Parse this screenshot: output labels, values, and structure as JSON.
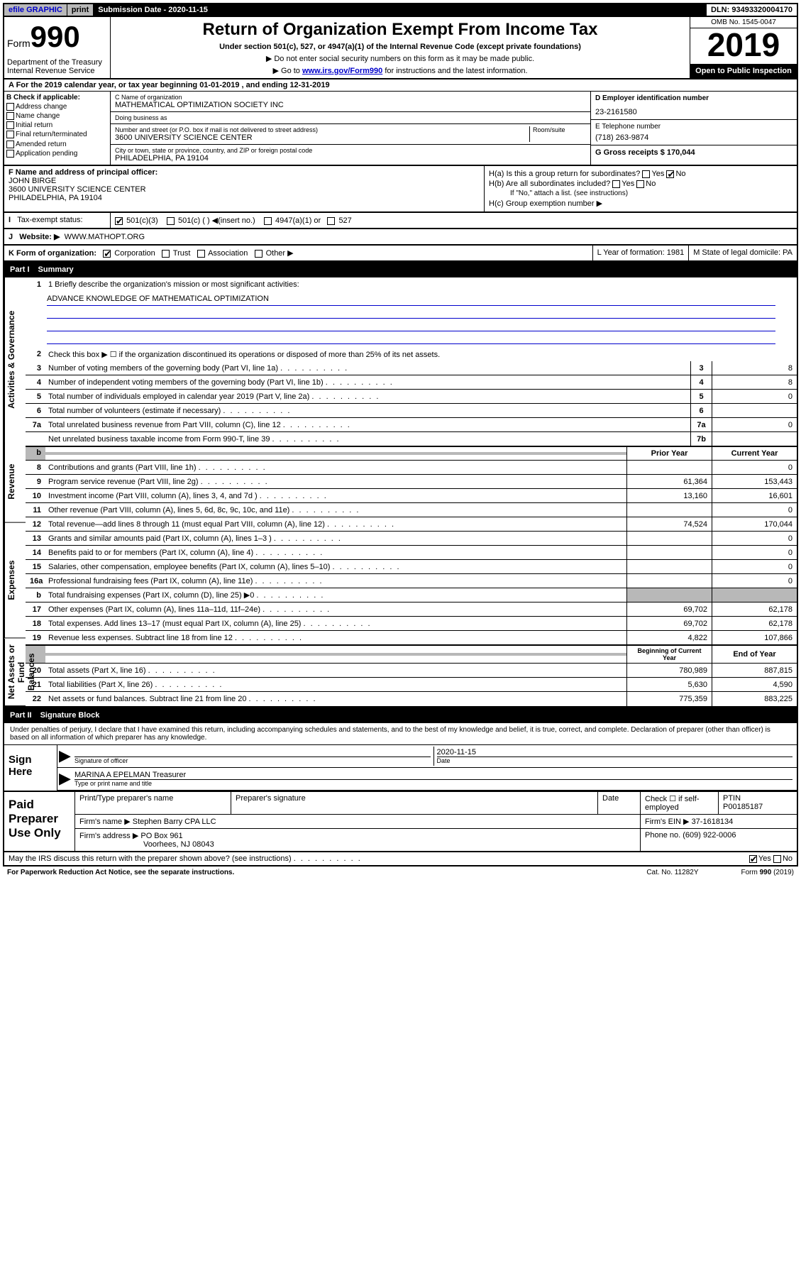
{
  "top": {
    "efile": "efile GRAPHIC",
    "print": "print",
    "sub_date_label": "Submission Date - 2020-11-15",
    "dln": "DLN: 93493320004170"
  },
  "header": {
    "form_prefix": "Form",
    "form_num": "990",
    "dept": "Department of the Treasury\nInternal Revenue Service",
    "title": "Return of Organization Exempt From Income Tax",
    "sub": "Under section 501(c), 527, or 4947(a)(1) of the Internal Revenue Code (except private foundations)",
    "note1": "▶ Do not enter social security numbers on this form as it may be made public.",
    "note2_pre": "▶ Go to ",
    "note2_link": "www.irs.gov/Form990",
    "note2_post": " for instructions and the latest information.",
    "omb": "OMB No. 1545-0047",
    "year": "2019",
    "inspection": "Open to Public Inspection"
  },
  "period": "A For the 2019 calendar year, or tax year beginning 01-01-2019    , and ending 12-31-2019",
  "checkB": {
    "label": "B Check if applicable:",
    "items": [
      "Address change",
      "Name change",
      "Initial return",
      "Final return/terminated",
      "Amended return",
      "Application pending"
    ]
  },
  "entity": {
    "name_label": "C Name of organization",
    "name": "MATHEMATICAL OPTIMIZATION SOCIETY INC",
    "dba_label": "Doing business as",
    "addr_label": "Number and street (or P.O. box if mail is not delivered to street address)",
    "room_label": "Room/suite",
    "addr": "3600 UNIVERSITY SCIENCE CENTER",
    "city_label": "City or town, state or province, country, and ZIP or foreign postal code",
    "city": "PHILADELPHIA, PA  19104",
    "ein_label": "D Employer identification number",
    "ein": "23-2161580",
    "phone_label": "E Telephone number",
    "phone": "(718) 263-9874",
    "gross_label": "G Gross receipts $ 170,044"
  },
  "officer": {
    "label": "F  Name and address of principal officer:",
    "name": "JOHN BIRGE",
    "addr1": "3600 UNIVERSITY SCIENCE CENTER",
    "addr2": "PHILADELPHIA, PA  19104",
    "ha": "H(a)  Is this a group return for subordinates?",
    "hb": "H(b)  Are all subordinates included?",
    "hb_note": "If \"No,\" attach a list. (see instructions)",
    "hc": "H(c)  Group exemption number ▶"
  },
  "status": {
    "label": "Tax-exempt status:",
    "opts": [
      "501(c)(3)",
      "501(c) (  ) ◀(insert no.)",
      "4947(a)(1) or",
      "527"
    ]
  },
  "website": {
    "label": "Website: ▶",
    "value": "WWW.MATHOPT.ORG"
  },
  "formorg": {
    "label": "K Form of organization:",
    "opts": [
      "Corporation",
      "Trust",
      "Association",
      "Other ▶"
    ],
    "year_label": "L Year of formation: 1981",
    "state_label": "M State of legal domicile: PA"
  },
  "part1": {
    "header": "Part I",
    "title": "Summary",
    "mission_label": "1  Briefly describe the organization's mission or most significant activities:",
    "mission": "ADVANCE KNOWLEDGE OF MATHEMATICAL OPTIMIZATION",
    "line2": "Check this box ▶ ☐  if the organization discontinued its operations or disposed of more than 25% of its net assets.",
    "sections": {
      "governance": "Activities & Governance",
      "revenue": "Revenue",
      "expenses": "Expenses",
      "netassets": "Net Assets or Fund Balances"
    },
    "gov_rows": [
      {
        "n": "3",
        "d": "Number of voting members of the governing body (Part VI, line 1a)",
        "box": "3",
        "v": "8"
      },
      {
        "n": "4",
        "d": "Number of independent voting members of the governing body (Part VI, line 1b)",
        "box": "4",
        "v": "8"
      },
      {
        "n": "5",
        "d": "Total number of individuals employed in calendar year 2019 (Part V, line 2a)",
        "box": "5",
        "v": "0"
      },
      {
        "n": "6",
        "d": "Total number of volunteers (estimate if necessary)",
        "box": "6",
        "v": ""
      },
      {
        "n": "7a",
        "d": "Total unrelated business revenue from Part VIII, column (C), line 12",
        "box": "7a",
        "v": "0"
      },
      {
        "n": "",
        "d": "Net unrelated business taxable income from Form 990-T, line 39",
        "box": "7b",
        "v": ""
      }
    ],
    "col_headers": {
      "prior": "Prior Year",
      "current": "Current Year"
    },
    "rev_rows": [
      {
        "n": "8",
        "d": "Contributions and grants (Part VIII, line 1h)",
        "p": "",
        "c": "0"
      },
      {
        "n": "9",
        "d": "Program service revenue (Part VIII, line 2g)",
        "p": "61,364",
        "c": "153,443"
      },
      {
        "n": "10",
        "d": "Investment income (Part VIII, column (A), lines 3, 4, and 7d )",
        "p": "13,160",
        "c": "16,601"
      },
      {
        "n": "11",
        "d": "Other revenue (Part VIII, column (A), lines 5, 6d, 8c, 9c, 10c, and 11e)",
        "p": "",
        "c": "0"
      },
      {
        "n": "12",
        "d": "Total revenue—add lines 8 through 11 (must equal Part VIII, column (A), line 12)",
        "p": "74,524",
        "c": "170,044"
      }
    ],
    "exp_rows": [
      {
        "n": "13",
        "d": "Grants and similar amounts paid (Part IX, column (A), lines 1–3 )",
        "p": "",
        "c": "0"
      },
      {
        "n": "14",
        "d": "Benefits paid to or for members (Part IX, column (A), line 4)",
        "p": "",
        "c": "0"
      },
      {
        "n": "15",
        "d": "Salaries, other compensation, employee benefits (Part IX, column (A), lines 5–10)",
        "p": "",
        "c": "0"
      },
      {
        "n": "16a",
        "d": "Professional fundraising fees (Part IX, column (A), line 11e)",
        "p": "",
        "c": "0"
      },
      {
        "n": "b",
        "d": "Total fundraising expenses (Part IX, column (D), line 25) ▶0",
        "p": "grey",
        "c": "grey"
      },
      {
        "n": "17",
        "d": "Other expenses (Part IX, column (A), lines 11a–11d, 11f–24e)",
        "p": "69,702",
        "c": "62,178"
      },
      {
        "n": "18",
        "d": "Total expenses. Add lines 13–17 (must equal Part IX, column (A), line 25)",
        "p": "69,702",
        "c": "62,178"
      },
      {
        "n": "19",
        "d": "Revenue less expenses. Subtract line 18 from line 12",
        "p": "4,822",
        "c": "107,866"
      }
    ],
    "na_headers": {
      "prior": "Beginning of Current Year",
      "current": "End of Year"
    },
    "na_rows": [
      {
        "n": "20",
        "d": "Total assets (Part X, line 16)",
        "p": "780,989",
        "c": "887,815"
      },
      {
        "n": "21",
        "d": "Total liabilities (Part X, line 26)",
        "p": "5,630",
        "c": "4,590"
      },
      {
        "n": "22",
        "d": "Net assets or fund balances. Subtract line 21 from line 20",
        "p": "775,359",
        "c": "883,225"
      }
    ]
  },
  "part2": {
    "header": "Part II",
    "title": "Signature Block",
    "perjury": "Under penalties of perjury, I declare that I have examined this return, including accompanying schedules and statements, and to the best of my knowledge and belief, it is true, correct, and complete. Declaration of preparer (other than officer) is based on all information of which preparer has any knowledge.",
    "sign_here": "Sign Here",
    "sig_officer": "Signature of officer",
    "sig_date": "2020-11-15",
    "date_label": "Date",
    "officer_name": "MARINA A EPELMAN Treasurer",
    "type_name": "Type or print name and title",
    "paid_label": "Paid Preparer Use Only",
    "prep_name_label": "Print/Type preparer's name",
    "prep_sig_label": "Preparer's signature",
    "check_self": "Check ☐ if self-employed",
    "ptin_label": "PTIN",
    "ptin": "P00185187",
    "firm_name_label": "Firm's name    ▶",
    "firm_name": "Stephen Barry CPA LLC",
    "firm_ein_label": "Firm's EIN ▶",
    "firm_ein": "37-1618134",
    "firm_addr_label": "Firm's address ▶",
    "firm_addr": "PO Box 961",
    "firm_city": "Voorhees, NJ  08043",
    "firm_phone_label": "Phone no.",
    "firm_phone": "(609) 922-0006",
    "discuss": "May the IRS discuss this return with the preparer shown above? (see instructions)",
    "footer_left": "For Paperwork Reduction Act Notice, see the separate instructions.",
    "footer_mid": "Cat. No. 11282Y",
    "footer_right": "Form 990 (2019)"
  }
}
